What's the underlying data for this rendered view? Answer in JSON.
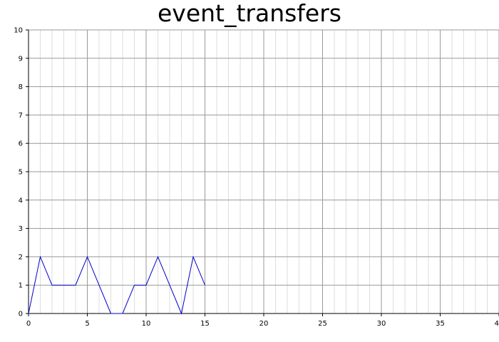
{
  "chart_data": {
    "type": "line",
    "title": "event_transfers",
    "xlabel": "",
    "ylabel": "",
    "xlim": [
      0,
      40
    ],
    "ylim": [
      0,
      10
    ],
    "x_ticks": [
      0,
      5,
      10,
      15,
      20,
      25,
      30,
      35,
      40
    ],
    "y_ticks": [
      0,
      1,
      2,
      3,
      4,
      5,
      6,
      7,
      8,
      9,
      10
    ],
    "grid": true,
    "legend": "none",
    "series": [
      {
        "color": "#0000cc",
        "x": [
          0,
          1,
          2,
          3,
          4,
          5,
          6,
          7,
          8,
          9,
          10,
          11,
          12,
          13,
          14,
          15
        ],
        "y": [
          0,
          2,
          1,
          1,
          1,
          2,
          1,
          0,
          0,
          1,
          1,
          2,
          1,
          0,
          2,
          1
        ]
      }
    ]
  }
}
